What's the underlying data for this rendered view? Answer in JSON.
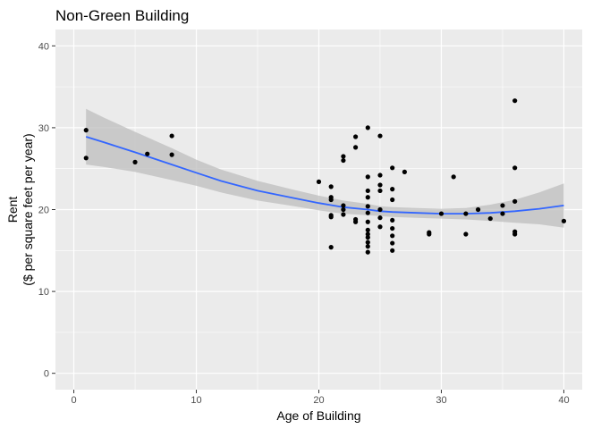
{
  "chart_data": {
    "type": "scatter",
    "title": "Non-Green Building",
    "xlabel": "Age of Building",
    "ylabel_line1": "Rent",
    "ylabel_line2": "($ per square feet per year)",
    "xlim": [
      -1.5,
      41.5
    ],
    "ylim": [
      -2,
      42
    ],
    "x_ticks": [
      0,
      10,
      20,
      30,
      40
    ],
    "y_ticks": [
      0,
      10,
      20,
      30,
      40
    ],
    "background": "#ebebeb",
    "grid": true,
    "grid_color": "#ffffff",
    "point_color": "#000000",
    "smooth_color": "#3366ff",
    "band_color": "#bebebe",
    "points": [
      {
        "x": 1,
        "y": 29.7
      },
      {
        "x": 1,
        "y": 26.3
      },
      {
        "x": 5,
        "y": 25.8
      },
      {
        "x": 6,
        "y": 26.8
      },
      {
        "x": 8,
        "y": 29.0
      },
      {
        "x": 8,
        "y": 26.7
      },
      {
        "x": 20,
        "y": 23.4
      },
      {
        "x": 21,
        "y": 22.8
      },
      {
        "x": 21,
        "y": 21.5
      },
      {
        "x": 21,
        "y": 21.2
      },
      {
        "x": 21,
        "y": 19.3
      },
      {
        "x": 21,
        "y": 19.1
      },
      {
        "x": 21,
        "y": 15.4
      },
      {
        "x": 22,
        "y": 26.5
      },
      {
        "x": 22,
        "y": 26.0
      },
      {
        "x": 22,
        "y": 20.5
      },
      {
        "x": 22,
        "y": 20.0
      },
      {
        "x": 22,
        "y": 19.4
      },
      {
        "x": 23,
        "y": 28.9
      },
      {
        "x": 23,
        "y": 27.6
      },
      {
        "x": 23,
        "y": 18.8
      },
      {
        "x": 23,
        "y": 18.5
      },
      {
        "x": 24,
        "y": 30.0
      },
      {
        "x": 24,
        "y": 24.0
      },
      {
        "x": 24,
        "y": 22.3
      },
      {
        "x": 24,
        "y": 21.5
      },
      {
        "x": 24,
        "y": 20.4
      },
      {
        "x": 24,
        "y": 19.6
      },
      {
        "x": 24,
        "y": 18.5
      },
      {
        "x": 24,
        "y": 17.5
      },
      {
        "x": 24,
        "y": 17.0
      },
      {
        "x": 24,
        "y": 16.6
      },
      {
        "x": 24,
        "y": 16.0
      },
      {
        "x": 24,
        "y": 15.5
      },
      {
        "x": 24,
        "y": 14.8
      },
      {
        "x": 25,
        "y": 29.0
      },
      {
        "x": 25,
        "y": 24.2
      },
      {
        "x": 25,
        "y": 23.0
      },
      {
        "x": 25,
        "y": 22.3
      },
      {
        "x": 25,
        "y": 20.0
      },
      {
        "x": 25,
        "y": 19.0
      },
      {
        "x": 25,
        "y": 17.9
      },
      {
        "x": 26,
        "y": 25.1
      },
      {
        "x": 26,
        "y": 22.5
      },
      {
        "x": 26,
        "y": 21.2
      },
      {
        "x": 26,
        "y": 18.7
      },
      {
        "x": 26,
        "y": 17.7
      },
      {
        "x": 26,
        "y": 16.8
      },
      {
        "x": 26,
        "y": 15.9
      },
      {
        "x": 26,
        "y": 15.0
      },
      {
        "x": 27,
        "y": 24.6
      },
      {
        "x": 29,
        "y": 17.2
      },
      {
        "x": 29,
        "y": 17.0
      },
      {
        "x": 30,
        "y": 19.5
      },
      {
        "x": 31,
        "y": 24.0
      },
      {
        "x": 32,
        "y": 19.5
      },
      {
        "x": 32,
        "y": 17.0
      },
      {
        "x": 33,
        "y": 20.0
      },
      {
        "x": 34,
        "y": 18.9
      },
      {
        "x": 35,
        "y": 20.5
      },
      {
        "x": 35,
        "y": 19.5
      },
      {
        "x": 36,
        "y": 33.3
      },
      {
        "x": 36,
        "y": 25.1
      },
      {
        "x": 36,
        "y": 21.0
      },
      {
        "x": 36,
        "y": 17.3
      },
      {
        "x": 36,
        "y": 17.0
      },
      {
        "x": 40,
        "y": 18.6
      }
    ],
    "smooth": {
      "x": [
        1,
        2.5,
        5,
        8,
        10,
        12,
        15,
        18,
        20,
        22,
        24,
        25,
        26,
        28,
        30,
        32,
        34,
        36,
        38,
        40
      ],
      "y": [
        28.9,
        28.2,
        27.0,
        25.5,
        24.5,
        23.5,
        22.3,
        21.4,
        20.8,
        20.3,
        20.0,
        19.8,
        19.7,
        19.6,
        19.5,
        19.5,
        19.6,
        19.8,
        20.1,
        20.5
      ],
      "lower": [
        25.5,
        25.2,
        24.6,
        23.6,
        22.9,
        22.1,
        21.1,
        20.4,
        19.9,
        19.5,
        19.3,
        19.2,
        19.1,
        19.0,
        18.9,
        18.8,
        18.6,
        18.4,
        18.2,
        17.8
      ],
      "upper": [
        32.3,
        31.2,
        29.5,
        27.5,
        26.1,
        24.9,
        23.5,
        22.4,
        21.7,
        21.1,
        20.7,
        20.4,
        20.3,
        20.2,
        20.1,
        20.2,
        20.6,
        21.2,
        22.1,
        23.2
      ]
    }
  }
}
